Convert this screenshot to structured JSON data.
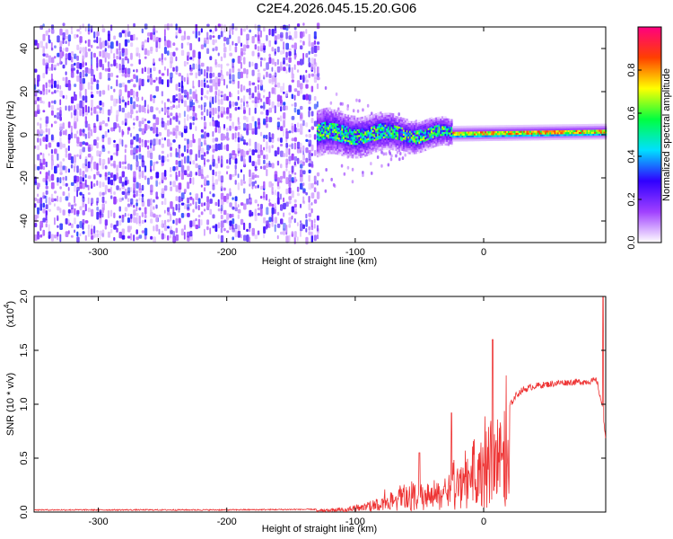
{
  "title": "C2E4.2026.045.15.20.G06",
  "chart_data": [
    {
      "type": "heatmap",
      "xlabel": "Height of straight line (km)",
      "ylabel": "Frequency (Hz)",
      "xlim": [
        -350,
        95
      ],
      "ylim": [
        -50,
        50
      ],
      "x_ticks": [
        -300,
        -200,
        -100,
        0
      ],
      "y_ticks": [
        -40,
        -20,
        0,
        20,
        40
      ],
      "colorbar": {
        "label": "Normalized spectral amplitude",
        "range": [
          0,
          1
        ],
        "ticks": [
          "0.0",
          "0.2",
          "0.4",
          "0.6",
          "0.8"
        ],
        "colors": [
          "#ffffff",
          "#a040ff",
          "#3000ff",
          "#00e0ff",
          "#00ff40",
          "#ffff00",
          "#ff4000",
          "#ff0080"
        ]
      },
      "regions": {
        "noise_x": [
          -350,
          -130
        ],
        "noise_y": [
          -50,
          50
        ],
        "signal_start_x": -130,
        "signal_freq_hz": 0,
        "signal_narrow_from_x": -25
      }
    },
    {
      "type": "line",
      "xlabel": "Height of straight line (km)",
      "ylabel": "SNR (10 * v/v)",
      "y_multiplier": "(x10",
      "y_multiplier_exp": "4",
      "y_multiplier_close": ")",
      "xlim": [
        -350,
        95
      ],
      "ylim": [
        0,
        2
      ],
      "x_ticks": [
        -300,
        -200,
        -100,
        0
      ],
      "y_ticks": [
        "0.0",
        "0.5",
        "1.0",
        "1.5",
        "2.0"
      ],
      "color": "#ee3333",
      "series": [
        {
          "profile": [
            [
              -350,
              0.02
            ],
            [
              -200,
              0.02
            ],
            [
              -130,
              0.025
            ],
            [
              -110,
              0.04
            ],
            [
              -95,
              0.08
            ],
            [
              -85,
              0.12
            ],
            [
              -75,
              0.17
            ],
            [
              -65,
              0.22
            ],
            [
              -55,
              0.25
            ],
            [
              -45,
              0.27
            ],
            [
              -35,
              0.29
            ],
            [
              -28,
              0.33
            ],
            [
              -22,
              0.42
            ],
            [
              -15,
              0.55
            ],
            [
              -8,
              0.68
            ],
            [
              0,
              0.78
            ],
            [
              10,
              0.85
            ],
            [
              20,
              0.98
            ],
            [
              25,
              1.08
            ],
            [
              30,
              1.13
            ],
            [
              40,
              1.17
            ],
            [
              60,
              1.2
            ],
            [
              80,
              1.21
            ],
            [
              88,
              1.22
            ],
            [
              92,
              1.0
            ],
            [
              95,
              0.7
            ]
          ],
          "spikes": [
            [
              7,
              1.6
            ],
            [
              8,
              0.2
            ],
            [
              -25,
              0.92
            ],
            [
              -50,
              0.55
            ],
            [
              93,
              2.0
            ]
          ]
        }
      ]
    }
  ]
}
